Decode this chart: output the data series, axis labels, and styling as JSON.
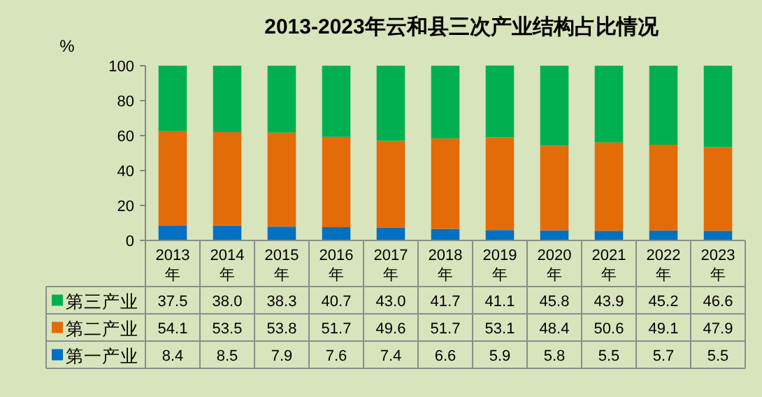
{
  "chart_data": {
    "type": "bar",
    "stacked": true,
    "title": "2013-2023年云和县三次产业结构占比情况",
    "ylabel": "%",
    "categories": [
      "2013年",
      "2014年",
      "2015年",
      "2016年",
      "2017年",
      "2018年",
      "2019年",
      "2020年",
      "2021年",
      "2022年",
      "2023年"
    ],
    "ylim": [
      0,
      100
    ],
    "yticks": [
      0,
      20,
      40,
      60,
      80,
      100
    ],
    "grid": false,
    "legend": "bottom left",
    "series": [
      {
        "name": "第一产业",
        "color": "#0070c0",
        "values": [
          8.4,
          8.5,
          7.9,
          7.6,
          7.4,
          6.6,
          5.9,
          5.8,
          5.5,
          5.7,
          5.5
        ],
        "value_labels": [
          "8.4",
          "8.5",
          "7.9",
          "7.6",
          "7.4",
          "6.6",
          "5.9",
          "5.8",
          "5.5",
          "5.7",
          "5.5"
        ]
      },
      {
        "name": "第二产业",
        "color": "#e36c09",
        "values": [
          54.1,
          53.5,
          53.8,
          51.7,
          49.6,
          51.7,
          53.1,
          48.4,
          50.6,
          49.1,
          47.9
        ],
        "value_labels": [
          "54.1",
          "53.5",
          "53.8",
          "51.7",
          "49.6",
          "51.7",
          "53.1",
          "48.4",
          "50.6",
          "49.1",
          "47.9"
        ]
      },
      {
        "name": "第三产业",
        "color": "#00b050",
        "values": [
          37.5,
          38.0,
          38.3,
          40.7,
          43.0,
          41.7,
          41.1,
          45.8,
          43.9,
          45.2,
          46.6
        ],
        "value_labels": [
          "37.5",
          "38.0",
          "38.3",
          "40.7",
          "43.0",
          "41.7",
          "41.1",
          "45.8",
          "43.9",
          "45.2",
          "46.6"
        ]
      }
    ]
  }
}
